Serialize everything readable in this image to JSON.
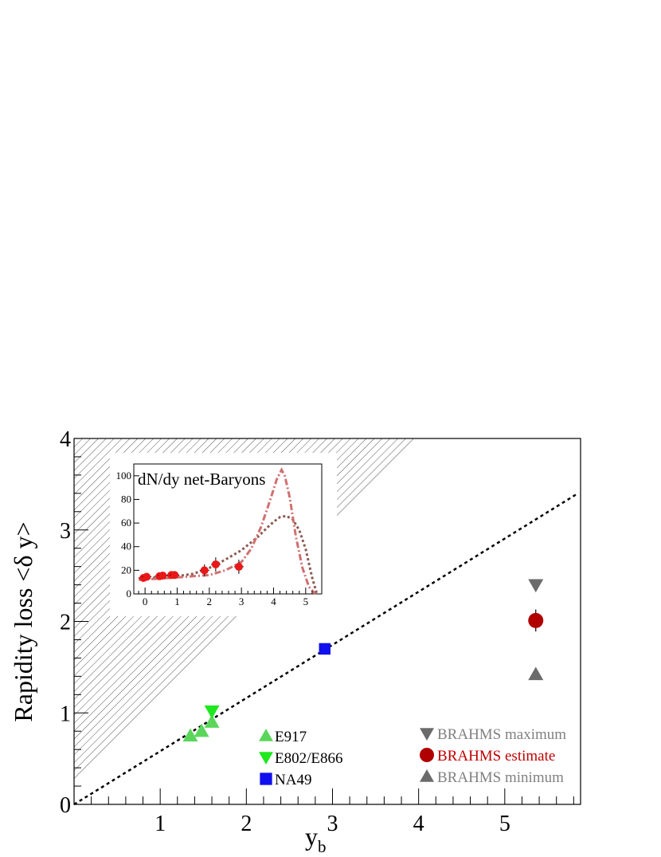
{
  "chart_data": [
    {
      "type": "scatter",
      "xlabel": "y",
      "xlabel_sub": "b",
      "ylabel": "Rapidity loss <δ y>",
      "xlim": [
        0,
        5.88
      ],
      "ylim": [
        0,
        4
      ],
      "x_ticks": [
        1,
        2,
        3,
        4,
        5
      ],
      "y_ticks": [
        0,
        1,
        2,
        3,
        4
      ],
      "grid": false,
      "shaded_region": "hatched region above diagonal",
      "reference_line": {
        "style": "dotted",
        "x": [
          0,
          5.85
        ],
        "y": [
          0,
          3.4
        ]
      },
      "legend_left": [
        {
          "label": "E917",
          "marker": "triangle-up",
          "color": "#5bd65b"
        },
        {
          "label": "E802/E866",
          "marker": "triangle-down",
          "color": "#1ee81e"
        },
        {
          "label": "NA49",
          "marker": "square",
          "color": "#1010ee"
        }
      ],
      "legend_right": [
        {
          "label": "BRAHMS maximum",
          "marker": "triangle-down",
          "color": "#6b6b6b",
          "text_color": "#808080"
        },
        {
          "label": "BRAHMS estimate",
          "marker": "circle",
          "color": "#b00000",
          "text_color": "#c00000"
        },
        {
          "label": "BRAHMS minimum",
          "marker": "triangle-up",
          "color": "#6b6b6b",
          "text_color": "#808080"
        }
      ],
      "series": [
        {
          "name": "E917",
          "marker": "triangle-up",
          "color": "#5bd65b",
          "points": [
            [
              1.35,
              0.75
            ],
            [
              1.48,
              0.8
            ],
            [
              1.6,
              0.9
            ]
          ]
        },
        {
          "name": "E802/E866",
          "marker": "triangle-down",
          "color": "#1ee81e",
          "points": [
            [
              1.6,
              1.02
            ]
          ]
        },
        {
          "name": "NA49",
          "marker": "square",
          "color": "#1010ee",
          "points": [
            [
              2.91,
              1.7
            ]
          ]
        },
        {
          "name": "BRAHMS maximum",
          "marker": "triangle-down",
          "color": "#6b6b6b",
          "points": [
            [
              5.36,
              2.4
            ]
          ]
        },
        {
          "name": "BRAHMS estimate",
          "marker": "circle",
          "color": "#b00000",
          "points": [
            [
              5.36,
              2.01
            ]
          ],
          "yerr": 0.12
        },
        {
          "name": "BRAHMS minimum",
          "marker": "triangle-up",
          "color": "#6b6b6b",
          "points": [
            [
              5.36,
              1.42
            ]
          ]
        }
      ]
    },
    {
      "type": "scatter",
      "title": "dN/dy net-Baryons",
      "xlim": [
        -0.35,
        5.5
      ],
      "ylim": [
        0,
        110
      ],
      "x_ticks": [
        0,
        1,
        2,
        3,
        4,
        5
      ],
      "y_ticks": [
        0,
        20,
        40,
        60,
        80,
        100
      ],
      "points": [
        {
          "x": -0.05,
          "y": 13.5,
          "yerr": 2
        },
        {
          "x": 0.05,
          "y": 14.5,
          "yerr": 2
        },
        {
          "x": 0.45,
          "y": 15,
          "yerr": 2
        },
        {
          "x": 0.55,
          "y": 15.5,
          "yerr": 2
        },
        {
          "x": 0.82,
          "y": 16,
          "yerr": 2
        },
        {
          "x": 0.92,
          "y": 16,
          "yerr": 2
        },
        {
          "x": 1.85,
          "y": 20,
          "yerr": 5
        },
        {
          "x": 2.2,
          "y": 25,
          "yerr": 6
        },
        {
          "x": 2.92,
          "y": 23,
          "yerr": 6
        }
      ],
      "point_color": "#e81818",
      "curves": [
        {
          "style": "dotted",
          "color": "#8a5a50",
          "x": [
            -0.2,
            0.5,
            1.0,
            1.5,
            2.0,
            2.5,
            3.0,
            3.5,
            3.8,
            4.0,
            4.2,
            4.4,
            4.6,
            4.8,
            5.0,
            5.2,
            5.35
          ],
          "y": [
            13,
            14,
            15,
            17,
            22,
            29,
            37,
            48,
            56,
            61,
            65,
            66,
            63,
            54,
            38,
            14,
            0
          ]
        },
        {
          "style": "dash-dot",
          "color": "#d07070",
          "x": [
            -0.2,
            0.5,
            1.0,
            1.5,
            2.0,
            2.5,
            3.0,
            3.3,
            3.6,
            3.9,
            4.1,
            4.25,
            4.35,
            4.5,
            4.7,
            4.9,
            5.1,
            5.3
          ],
          "y": [
            12,
            13,
            14,
            15,
            16,
            20,
            27,
            38,
            56,
            80,
            97,
            105,
            100,
            82,
            48,
            22,
            6,
            0
          ]
        }
      ]
    }
  ]
}
